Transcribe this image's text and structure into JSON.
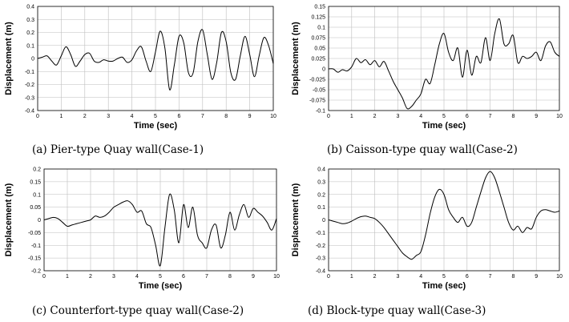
{
  "chart_data": [
    {
      "type": "line",
      "caption": "(a) Pier-type Quay wall(Case-1)",
      "xlabel": "Time (sec)",
      "ylabel": "Displacement (m)",
      "xlim": [
        0,
        10
      ],
      "ylim": [
        -0.4,
        0.4
      ],
      "xticks": [
        "0",
        "1",
        "2",
        "3",
        "4",
        "5",
        "6",
        "7",
        "8",
        "9",
        "10"
      ],
      "yticks": [
        "0.4",
        "0.3",
        "0.2",
        "0.1",
        "0",
        "-0.1",
        "-0.2",
        "-0.3",
        "-0.4"
      ],
      "grid": true,
      "series": [
        {
          "x": [
            0,
            0.2,
            0.4,
            0.6,
            0.8,
            1.0,
            1.2,
            1.4,
            1.6,
            1.8,
            2.0,
            2.2,
            2.4,
            2.6,
            2.8,
            3.0,
            3.2,
            3.4,
            3.6,
            3.8,
            4.0,
            4.2,
            4.4,
            4.6,
            4.8,
            5.0,
            5.2,
            5.4,
            5.6,
            5.8,
            6.0,
            6.2,
            6.4,
            6.6,
            6.8,
            7.0,
            7.2,
            7.4,
            7.6,
            7.8,
            8.0,
            8.2,
            8.4,
            8.6,
            8.8,
            9.0,
            9.2,
            9.4,
            9.6,
            9.8,
            10.0
          ],
          "y": [
            0,
            0.01,
            0.02,
            -0.02,
            -0.05,
            0.02,
            0.09,
            0.03,
            -0.06,
            -0.02,
            0.03,
            0.04,
            -0.02,
            -0.03,
            -0.01,
            -0.02,
            -0.02,
            0,
            0.01,
            -0.03,
            -0.01,
            0.06,
            0.09,
            -0.02,
            -0.1,
            0.05,
            0.21,
            0.08,
            -0.24,
            -0.05,
            0.17,
            0.12,
            -0.11,
            -0.11,
            0.13,
            0.22,
            0.03,
            -0.16,
            -0.03,
            0.2,
            0.13,
            -0.11,
            -0.16,
            0.02,
            0.17,
            0.03,
            -0.14,
            0.02,
            0.16,
            0.1,
            -0.04
          ]
        }
      ]
    },
    {
      "type": "line",
      "caption": "(b) Caisson-type quay wall(Case-2)",
      "xlabel": "Time (sec)",
      "ylabel": "Displacement (m)",
      "xlim": [
        0,
        10
      ],
      "ylim": [
        -0.1,
        0.15
      ],
      "xticks": [
        "0",
        "1",
        "2",
        "3",
        "4",
        "5",
        "6",
        "7",
        "8",
        "9",
        "10"
      ],
      "yticks": [
        "0.15",
        "0.125",
        "0.1",
        "0.075",
        "0.05",
        "0.025",
        "0",
        "-0.025",
        "-0.05",
        "-0.075",
        "-0.1"
      ],
      "grid": true,
      "series": [
        {
          "x": [
            0,
            0.2,
            0.4,
            0.6,
            0.8,
            1.0,
            1.2,
            1.4,
            1.6,
            1.8,
            2.0,
            2.2,
            2.4,
            2.6,
            2.8,
            3.0,
            3.2,
            3.4,
            3.6,
            3.8,
            4.0,
            4.2,
            4.4,
            4.6,
            4.8,
            5.0,
            5.2,
            5.4,
            5.6,
            5.8,
            6.0,
            6.2,
            6.4,
            6.6,
            6.8,
            7.0,
            7.2,
            7.4,
            7.6,
            7.8,
            8.0,
            8.2,
            8.4,
            8.6,
            8.8,
            9.0,
            9.2,
            9.4,
            9.6,
            9.8,
            10.0
          ],
          "y": [
            0,
            0,
            -0.008,
            -0.002,
            -0.005,
            0.005,
            0.025,
            0.015,
            0.022,
            0.01,
            0.02,
            0.005,
            0.018,
            -0.005,
            -0.03,
            -0.05,
            -0.07,
            -0.095,
            -0.09,
            -0.075,
            -0.06,
            -0.025,
            -0.035,
            0.01,
            0.06,
            0.085,
            0.04,
            0.02,
            0.05,
            -0.02,
            0.045,
            -0.015,
            0.03,
            0.015,
            0.075,
            0.02,
            0.085,
            0.12,
            0.06,
            0.06,
            0.08,
            0.015,
            0.03,
            0.025,
            0.03,
            0.04,
            0.02,
            0.055,
            0.065,
            0.04,
            0.03
          ]
        }
      ]
    },
    {
      "type": "line",
      "caption": "(c) Counterfort-type quay wall(Case-2)",
      "xlabel": "Time (sec)",
      "ylabel": "Displacement (m)",
      "xlim": [
        0,
        10
      ],
      "ylim": [
        -0.2,
        0.2
      ],
      "xticks": [
        "0",
        "1",
        "2",
        "3",
        "4",
        "5",
        "6",
        "7",
        "8",
        "9",
        "10"
      ],
      "yticks": [
        "0.2",
        "0.15",
        "0.1",
        "0.05",
        "0",
        "-0.05",
        "-0.1",
        "-0.15",
        "-0.2"
      ],
      "grid": true,
      "series": [
        {
          "x": [
            0,
            0.2,
            0.4,
            0.6,
            0.8,
            1.0,
            1.2,
            1.4,
            1.6,
            1.8,
            2.0,
            2.2,
            2.4,
            2.6,
            2.8,
            3.0,
            3.2,
            3.4,
            3.6,
            3.8,
            4.0,
            4.2,
            4.4,
            4.6,
            4.8,
            5.0,
            5.2,
            5.4,
            5.6,
            5.8,
            6.0,
            6.2,
            6.4,
            6.6,
            6.8,
            7.0,
            7.2,
            7.4,
            7.6,
            7.8,
            8.0,
            8.2,
            8.4,
            8.6,
            8.8,
            9.0,
            9.2,
            9.4,
            9.6,
            9.8,
            10.0
          ],
          "y": [
            0,
            0.005,
            0.01,
            0.005,
            -0.01,
            -0.025,
            -0.02,
            -0.015,
            -0.01,
            -0.005,
            0,
            0.015,
            0.01,
            0.015,
            0.03,
            0.05,
            0.06,
            0.07,
            0.075,
            0.06,
            0.03,
            0.035,
            -0.015,
            -0.03,
            -0.1,
            -0.18,
            -0.03,
            0.1,
            0.04,
            -0.09,
            0.06,
            -0.03,
            0.05,
            -0.06,
            -0.09,
            -0.11,
            -0.04,
            -0.02,
            -0.11,
            -0.06,
            0.03,
            -0.04,
            0.02,
            0.06,
            0.01,
            0.045,
            0.03,
            0.015,
            -0.01,
            -0.04,
            0.005
          ]
        }
      ]
    },
    {
      "type": "line",
      "caption": "(d) Block-type quay wall(Case-3)",
      "xlabel": "Time (sec)",
      "ylabel": "Displacement (m)",
      "xlim": [
        0,
        10
      ],
      "ylim": [
        -0.4,
        0.4
      ],
      "xticks": [
        "0",
        "1",
        "2",
        "3",
        "4",
        "5",
        "6",
        "7",
        "8",
        "9",
        "10"
      ],
      "yticks": [
        "0.4",
        "0.3",
        "0.2",
        "0.1",
        "0",
        "-0.1",
        "-0.2",
        "-0.3",
        "-0.4"
      ],
      "grid": true,
      "series": [
        {
          "x": [
            0,
            0.2,
            0.4,
            0.6,
            0.8,
            1.0,
            1.2,
            1.4,
            1.6,
            1.8,
            2.0,
            2.2,
            2.4,
            2.6,
            2.8,
            3.0,
            3.2,
            3.4,
            3.6,
            3.8,
            4.0,
            4.2,
            4.4,
            4.6,
            4.8,
            5.0,
            5.2,
            5.4,
            5.6,
            5.8,
            6.0,
            6.2,
            6.4,
            6.6,
            6.8,
            7.0,
            7.2,
            7.4,
            7.6,
            7.8,
            8.0,
            8.2,
            8.4,
            8.6,
            8.8,
            9.0,
            9.2,
            9.4,
            9.6,
            9.8,
            10.0
          ],
          "y": [
            0,
            -0.01,
            -0.02,
            -0.03,
            -0.025,
            -0.01,
            0.01,
            0.025,
            0.03,
            0.02,
            0.01,
            -0.02,
            -0.06,
            -0.11,
            -0.16,
            -0.21,
            -0.26,
            -0.29,
            -0.31,
            -0.28,
            -0.25,
            -0.12,
            0.05,
            0.18,
            0.24,
            0.2,
            0.08,
            0.02,
            -0.02,
            0.02,
            -0.05,
            -0.02,
            0.1,
            0.22,
            0.33,
            0.38,
            0.33,
            0.22,
            0.1,
            -0.02,
            -0.08,
            -0.05,
            -0.1,
            -0.06,
            -0.07,
            0.02,
            0.07,
            0.08,
            0.07,
            0.06,
            0.07
          ]
        }
      ]
    }
  ]
}
